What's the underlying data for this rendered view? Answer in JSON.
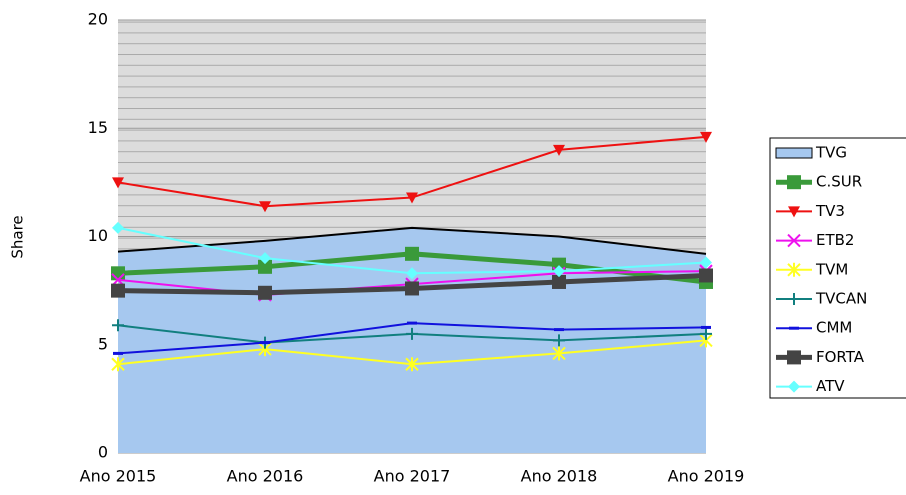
{
  "chart_data": {
    "type": "line",
    "y_label": "Share",
    "categories": [
      "Ano 2015",
      "Ano 2016",
      "Ano 2017",
      "Ano 2018",
      "Ano 2019"
    ],
    "ylim": [
      0,
      20
    ],
    "yticks": [
      0,
      5,
      10,
      15,
      20
    ],
    "grid": true,
    "legend": "right",
    "series": [
      {
        "name": "TVG",
        "kind": "area",
        "color": "#a6c8ef",
        "marker": "none",
        "linewidth": 2,
        "values": [
          9.3,
          9.8,
          10.4,
          10.0,
          9.2
        ]
      },
      {
        "name": "C.SUR",
        "color": "#3a9a3a",
        "marker": "square",
        "linewidth": 5,
        "values": [
          8.3,
          8.6,
          9.2,
          8.7,
          7.9
        ]
      },
      {
        "name": "TV3",
        "color": "#ee1111",
        "marker": "triangle-down",
        "linewidth": 2,
        "values": [
          12.5,
          11.4,
          11.8,
          14.0,
          14.6
        ]
      },
      {
        "name": "ETB2",
        "color": "#ee11ee",
        "marker": "x",
        "linewidth": 2,
        "values": [
          8.0,
          7.3,
          7.8,
          8.3,
          8.4
        ]
      },
      {
        "name": "TVM",
        "color": "#ffff22",
        "marker": "asterisk",
        "linewidth": 2,
        "values": [
          4.1,
          4.8,
          4.1,
          4.6,
          5.2
        ]
      },
      {
        "name": "TVCAN",
        "color": "#117f7f",
        "marker": "plus",
        "linewidth": 2,
        "values": [
          5.9,
          5.1,
          5.5,
          5.2,
          5.5
        ]
      },
      {
        "name": "CMM",
        "color": "#1111dd",
        "marker": "dash",
        "linewidth": 2,
        "values": [
          4.6,
          5.1,
          6.0,
          5.7,
          5.8
        ]
      },
      {
        "name": "FORTA",
        "color": "#444444",
        "marker": "square",
        "linewidth": 5,
        "values": [
          7.5,
          7.4,
          7.6,
          7.9,
          8.2
        ]
      },
      {
        "name": "ATV",
        "color": "#66ffff",
        "marker": "diamond",
        "linewidth": 2,
        "values": [
          10.4,
          9.0,
          8.3,
          8.4,
          8.8
        ]
      }
    ]
  }
}
